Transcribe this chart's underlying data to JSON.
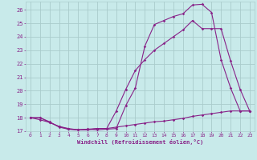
{
  "xlabel": "Windchill (Refroidissement éolien,°C)",
  "bg_color": "#c8eaea",
  "line_color": "#882288",
  "grid_color": "#aacccc",
  "xlim": [
    -0.5,
    23.5
  ],
  "ylim": [
    17,
    26.6
  ],
  "yticks": [
    17,
    18,
    19,
    20,
    21,
    22,
    23,
    24,
    25,
    26
  ],
  "xticks": [
    0,
    1,
    2,
    3,
    4,
    5,
    6,
    7,
    8,
    9,
    10,
    11,
    12,
    13,
    14,
    15,
    16,
    17,
    18,
    19,
    20,
    21,
    22,
    23
  ],
  "line1_x": [
    0,
    1,
    2,
    3,
    4,
    5,
    6,
    7,
    8,
    9,
    10,
    11,
    12,
    13,
    14,
    15,
    16,
    17,
    18,
    19,
    20,
    21,
    22,
    23
  ],
  "line1_y": [
    18.0,
    17.85,
    17.65,
    17.35,
    17.2,
    17.1,
    17.1,
    17.2,
    17.2,
    17.3,
    17.4,
    17.5,
    17.6,
    17.7,
    17.75,
    17.85,
    17.95,
    18.1,
    18.2,
    18.3,
    18.4,
    18.5,
    18.5,
    18.5
  ],
  "line2_x": [
    0,
    1,
    2,
    3,
    4,
    5,
    6,
    7,
    8,
    9,
    10,
    11,
    12,
    13,
    14,
    15,
    16,
    17,
    18,
    19,
    20,
    21,
    22,
    23
  ],
  "line2_y": [
    18.0,
    18.0,
    17.65,
    17.35,
    17.15,
    17.1,
    17.15,
    17.1,
    17.15,
    17.2,
    18.9,
    20.2,
    23.3,
    24.9,
    25.2,
    25.5,
    25.7,
    26.35,
    26.4,
    25.8,
    22.3,
    20.2,
    18.5,
    18.5
  ],
  "line3_x": [
    0,
    1,
    2,
    3,
    4,
    5,
    6,
    7,
    8,
    9,
    10,
    11,
    12,
    13,
    14,
    15,
    16,
    17,
    18,
    19,
    20,
    21,
    22,
    23
  ],
  "line3_y": [
    18.0,
    18.0,
    17.7,
    17.3,
    17.15,
    17.1,
    17.15,
    17.2,
    17.2,
    18.5,
    20.1,
    21.5,
    22.3,
    23.0,
    23.5,
    24.0,
    24.5,
    25.2,
    24.6,
    24.6,
    24.6,
    22.2,
    20.1,
    18.5
  ]
}
